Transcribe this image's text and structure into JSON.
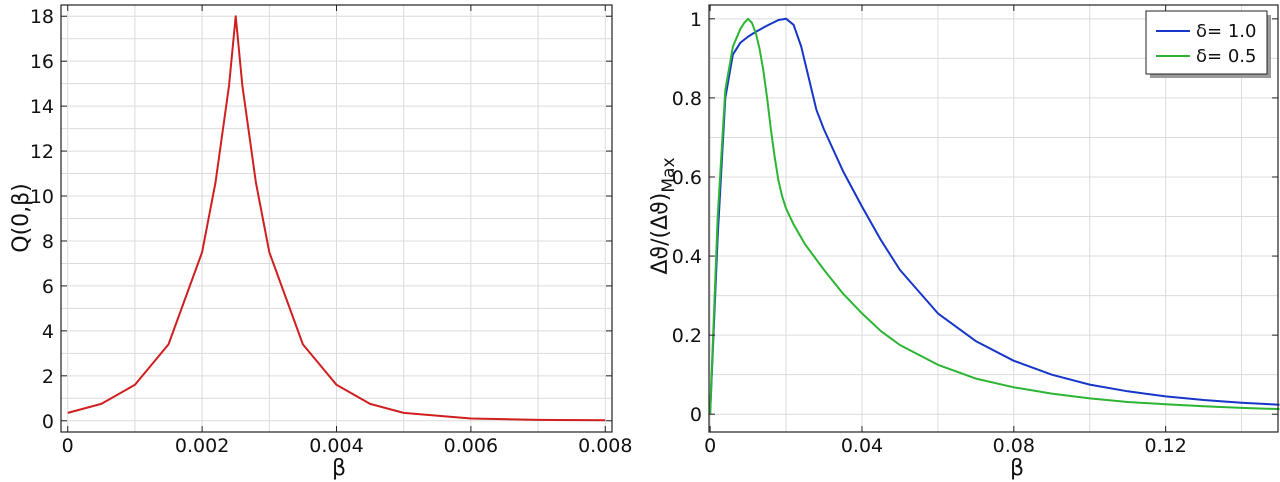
{
  "chart_data": [
    {
      "type": "line",
      "title": "",
      "xlabel": "β",
      "ylabel": "Q(0,β)",
      "xlim": [
        -0.0001,
        0.0081
      ],
      "ylim": [
        -0.5,
        18.5
      ],
      "x_ticks": [
        0,
        0.002,
        0.004,
        0.006,
        0.008
      ],
      "x_tick_labels": [
        "0",
        "0.002",
        "0.004",
        "0.006",
        "0.008"
      ],
      "y_ticks": [
        0,
        2,
        4,
        6,
        8,
        10,
        12,
        14,
        16,
        18
      ],
      "y_tick_labels": [
        "0",
        "2",
        "4",
        "6",
        "8",
        "10",
        "12",
        "14",
        "16",
        "18"
      ],
      "grid": true,
      "legend": false,
      "series": [
        {
          "color": "#d01f1f",
          "x": [
            0,
            0.0005,
            0.001,
            0.0015,
            0.002,
            0.0022,
            0.0024,
            0.0025,
            0.0026,
            0.0028,
            0.003,
            0.0035,
            0.004,
            0.0045,
            0.005,
            0.006,
            0.007,
            0.008
          ],
          "y": [
            0.35,
            0.75,
            1.6,
            3.4,
            7.5,
            10.6,
            14.9,
            18.0,
            14.9,
            10.6,
            7.5,
            3.4,
            1.6,
            0.75,
            0.35,
            0.1,
            0.04,
            0.02
          ]
        }
      ]
    },
    {
      "type": "line",
      "title": "",
      "xlabel": "β",
      "ylabel_main": "Δϑ/(Δϑ)",
      "ylabel_sub": "Max",
      "xlim": [
        -0.0003,
        0.1496
      ],
      "ylim": [
        -0.045,
        1.035
      ],
      "x_ticks": [
        0,
        0.04,
        0.08,
        0.12
      ],
      "x_tick_labels": [
        "0",
        "0.04",
        "0.08",
        "0.12"
      ],
      "y_ticks": [
        0,
        0.2,
        0.4,
        0.6,
        0.8,
        1
      ],
      "y_tick_labels": [
        "0",
        "0.2",
        "0.4",
        "0.6",
        "0.8",
        "1"
      ],
      "grid": true,
      "legend": "top-right",
      "series": [
        {
          "name": "δ= 1.0",
          "color": "#1536c8",
          "x": [
            0,
            0.002,
            0.004,
            0.006,
            0.008,
            0.01,
            0.012,
            0.015,
            0.018,
            0.02,
            0.022,
            0.024,
            0.026,
            0.028,
            0.03,
            0.035,
            0.04,
            0.045,
            0.05,
            0.06,
            0.07,
            0.08,
            0.09,
            0.1,
            0.11,
            0.12,
            0.13,
            0.14,
            0.15
          ],
          "y": [
            0,
            0.45,
            0.8,
            0.91,
            0.94,
            0.955,
            0.967,
            0.983,
            0.997,
            1.0,
            0.985,
            0.93,
            0.85,
            0.77,
            0.72,
            0.615,
            0.525,
            0.44,
            0.365,
            0.255,
            0.185,
            0.135,
            0.1,
            0.075,
            0.058,
            0.045,
            0.036,
            0.029,
            0.024
          ]
        },
        {
          "name": "δ= 0.5",
          "color": "#2bb532",
          "x": [
            0,
            0.002,
            0.004,
            0.006,
            0.008,
            0.009,
            0.01,
            0.011,
            0.012,
            0.013,
            0.014,
            0.015,
            0.016,
            0.017,
            0.018,
            0.019,
            0.02,
            0.022,
            0.025,
            0.03,
            0.035,
            0.04,
            0.045,
            0.05,
            0.06,
            0.07,
            0.08,
            0.09,
            0.1,
            0.11,
            0.12,
            0.13,
            0.14,
            0.15
          ],
          "y": [
            0,
            0.5,
            0.82,
            0.93,
            0.975,
            0.99,
            1.0,
            0.99,
            0.965,
            0.925,
            0.87,
            0.8,
            0.72,
            0.65,
            0.59,
            0.55,
            0.52,
            0.48,
            0.43,
            0.365,
            0.305,
            0.255,
            0.21,
            0.175,
            0.125,
            0.09,
            0.068,
            0.052,
            0.04,
            0.031,
            0.025,
            0.02,
            0.016,
            0.013
          ]
        }
      ]
    }
  ]
}
